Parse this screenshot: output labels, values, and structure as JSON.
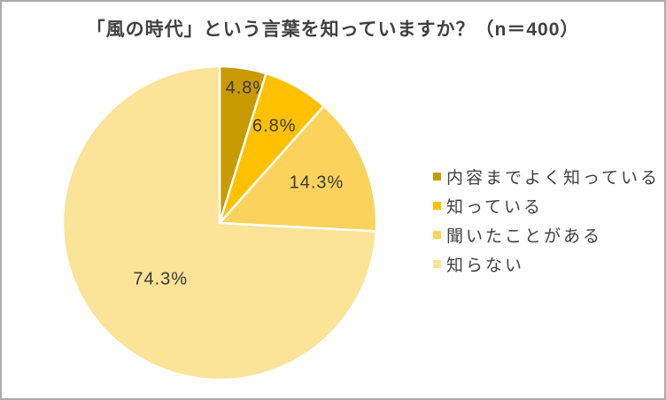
{
  "frame": {
    "border_color": "#ABABAB",
    "background_color": "#FFFFFF"
  },
  "chart_data": {
    "type": "pie",
    "title": "「風の時代」という言葉を知っていますか？（n＝400）",
    "categories": [
      "内容までよく知っている",
      "知っている",
      "聞いたことがある",
      "知らない"
    ],
    "values": [
      4.8,
      6.8,
      14.3,
      74.3
    ],
    "labels": [
      "4.8%",
      "6.8%",
      "14.3%",
      "74.3%"
    ],
    "colors": [
      "#C79A02",
      "#FFC000",
      "#FBD35C",
      "#FBE398"
    ],
    "slice_border_color": "#FFFFFF",
    "label_color": "#3B3838",
    "title_color": "#404040",
    "legend_text_color": "#404040",
    "legend_position": "right",
    "start_angle_deg": 0,
    "direction": "clockwise"
  }
}
